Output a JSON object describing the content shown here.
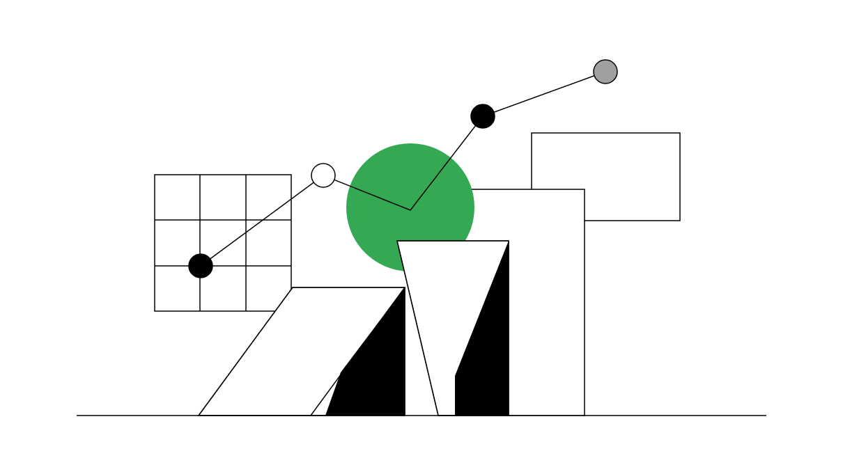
{
  "colors": {
    "background": "#ffffff",
    "line": "#000000",
    "accent_circle": "#34a853",
    "node_black": "#000000",
    "node_white": "#ffffff",
    "node_gray": "#a0a0a0",
    "dark_face": "#000000"
  },
  "illustration": {
    "grid": {
      "rows": 3,
      "cols": 3
    },
    "nodes": [
      {
        "role": "node-1",
        "fill": "black"
      },
      {
        "role": "node-2",
        "fill": "white"
      },
      {
        "role": "node-3",
        "fill": "black"
      },
      {
        "role": "node-4",
        "fill": "gray"
      }
    ]
  }
}
